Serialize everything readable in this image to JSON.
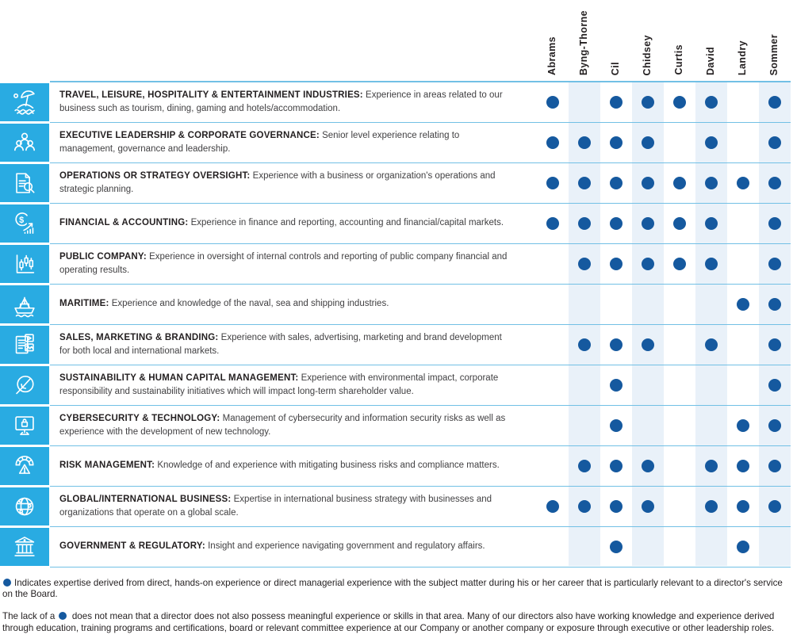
{
  "matrix": {
    "columns": [
      "Abrams",
      "Byng-Thorne",
      "Cil",
      "Chidsey",
      "Curtis",
      "David",
      "Landry",
      "Sommer"
    ],
    "rows": [
      {
        "icon": "beach-umbrella-icon",
        "title": "TRAVEL, LEISURE, HOSPITALITY & ENTERTAINMENT INDUSTRIES:",
        "description": "Experience in areas related to our business such as tourism, dining, gaming and hotels/accommodation.",
        "marks": [
          1,
          0,
          1,
          1,
          1,
          1,
          0,
          1
        ]
      },
      {
        "icon": "people-group-icon",
        "title": "EXECUTIVE LEADERSHIP & CORPORATE GOVERNANCE:",
        "description": "Senior level experience relating to management, governance and leadership.",
        "marks": [
          1,
          1,
          1,
          1,
          0,
          1,
          0,
          1
        ]
      },
      {
        "icon": "document-magnifier-icon",
        "title": "OPERATIONS OR STRATEGY OVERSIGHT:",
        "description": "Experience with a business or organization's operations and strategic planning.",
        "marks": [
          1,
          1,
          1,
          1,
          1,
          1,
          1,
          1
        ]
      },
      {
        "icon": "dollar-growth-icon",
        "title": "FINANCIAL & ACCOUNTING:",
        "description": "Experience in finance and reporting, accounting and financial/capital markets.",
        "marks": [
          1,
          1,
          1,
          1,
          1,
          1,
          0,
          1
        ]
      },
      {
        "icon": "candlestick-chart-icon",
        "title": "PUBLIC COMPANY:",
        "description": "Experience in oversight of internal controls and reporting of public company financial and operating results.",
        "marks": [
          0,
          1,
          1,
          1,
          1,
          1,
          0,
          1
        ]
      },
      {
        "icon": "ship-icon",
        "title": "MARITIME:",
        "description": "Experience and knowledge of the naval, sea and shipping industries.",
        "marks": [
          0,
          0,
          0,
          0,
          0,
          0,
          1,
          1
        ]
      },
      {
        "icon": "media-branding-icon",
        "title": "SALES, MARKETING & BRANDING:",
        "description": "Experience with sales, advertising, marketing and brand development for both local and international markets.",
        "marks": [
          0,
          1,
          1,
          1,
          0,
          1,
          0,
          1
        ]
      },
      {
        "icon": "leaf-icon",
        "title": "SUSTAINABILITY & HUMAN CAPITAL MANAGEMENT:",
        "description": "Experience with environmental impact, corporate responsibility and sustainability initiatives which will impact long-term shareholder value.",
        "marks": [
          0,
          0,
          1,
          0,
          0,
          0,
          0,
          1
        ]
      },
      {
        "icon": "monitor-lock-icon",
        "title": "CYBERSECURITY & TECHNOLOGY:",
        "description": "Management of cybersecurity and information security risks as well as experience with the development of new technology.",
        "marks": [
          0,
          0,
          1,
          0,
          0,
          0,
          1,
          1
        ]
      },
      {
        "icon": "gauge-warning-icon",
        "title": "RISK MANAGEMENT:",
        "description": "Knowledge of and experience with mitigating business risks and compliance matters.",
        "marks": [
          0,
          1,
          1,
          1,
          0,
          1,
          1,
          1
        ]
      },
      {
        "icon": "globe-icon",
        "title": "GLOBAL/INTERNATIONAL BUSINESS:",
        "description": "Expertise in international business strategy with businesses and organizations that operate on a global scale.",
        "marks": [
          1,
          1,
          1,
          1,
          0,
          1,
          1,
          1
        ]
      },
      {
        "icon": "government-building-icon",
        "title": "GOVERNMENT & REGULATORY:",
        "description": "Insight and experience navigating government and regulatory affairs.",
        "marks": [
          0,
          0,
          1,
          0,
          0,
          0,
          1,
          0
        ]
      }
    ]
  },
  "footnotes": {
    "note1": "Indicates expertise derived from direct, hands-on experience or direct managerial experience with the subject matter during his or her career that is particularly relevant to a director's service on the Board.",
    "note2_prefix": "The lack of a",
    "note2_suffix": "does not mean that a director does not also possess meaningful experience or skills in that area. Many of our directors also have working knowledge and experience derived through education, training programs and certifications, board or relevant committee experience at our Company or another company or exposure through executive or other leadership roles."
  },
  "colors": {
    "icon_bg": "#29ABE2",
    "dot": "#15599F",
    "stripe": "#E9F1F9",
    "row_line": "#72C0E5",
    "title_text": "#231F20",
    "body_text": "#414042"
  }
}
